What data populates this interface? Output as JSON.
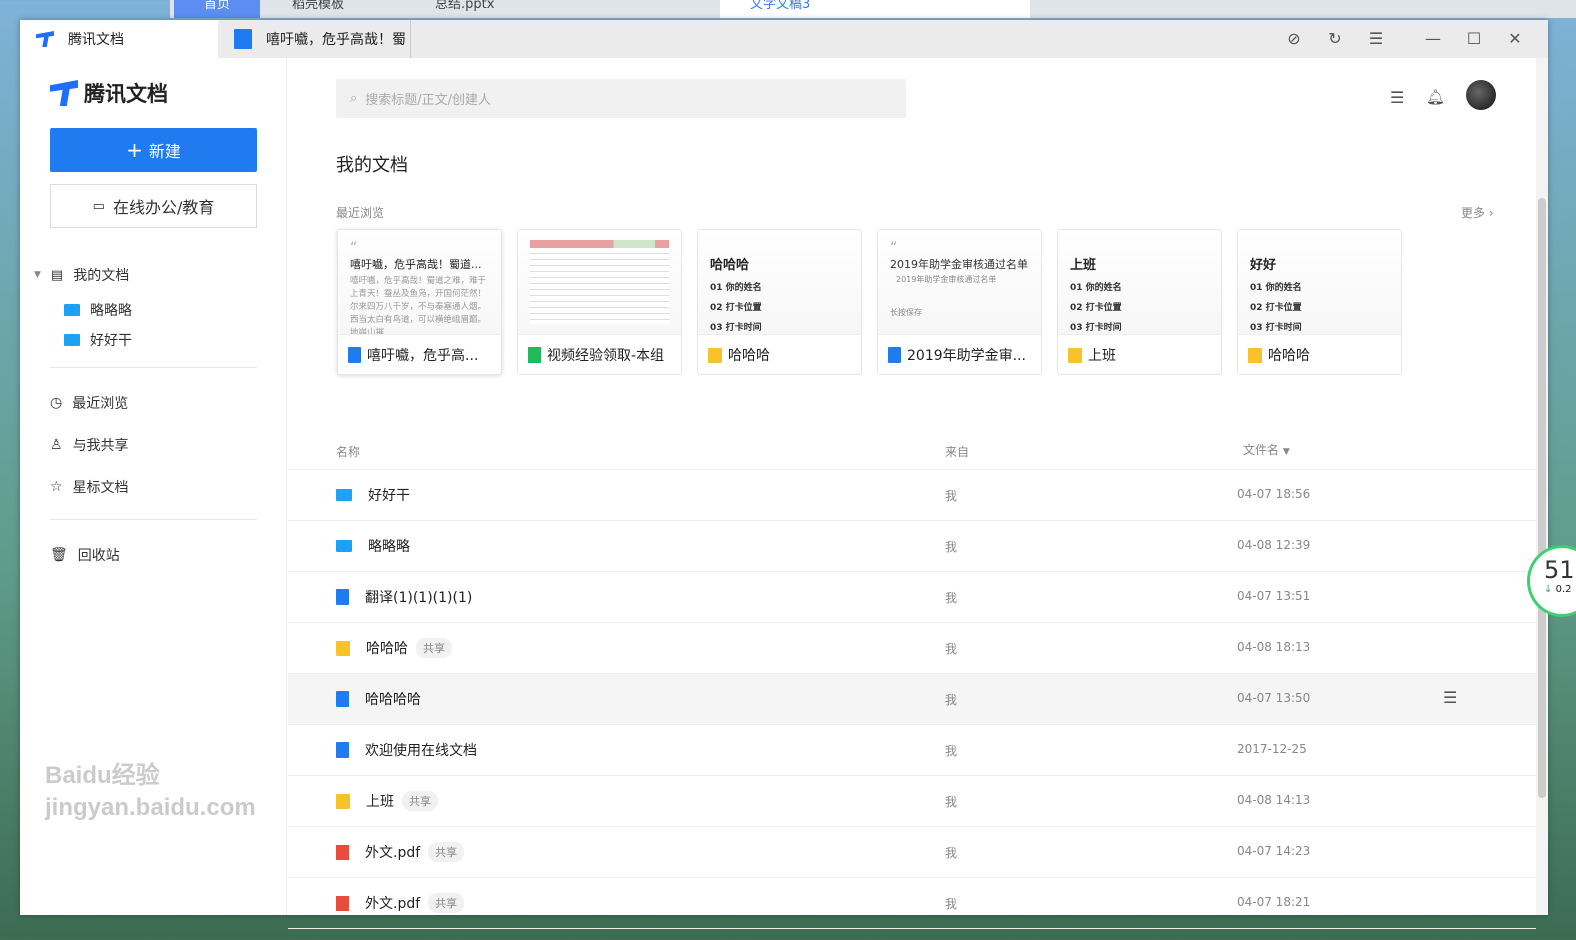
{
  "browser_tabs": [
    "首页",
    "稻壳模板",
    "总结.pptx",
    "文字文稿3"
  ],
  "window": {
    "app_tab": "腾讯文档",
    "doc_tab": "嘻吁嚱，危乎高哉！蜀"
  },
  "sidebar": {
    "logo": "腾讯文档",
    "new_label": "新建",
    "office_label": "在线办公/教育",
    "my_docs": "我的文档",
    "folders": [
      "略略略",
      "好好干"
    ],
    "nav": [
      "最近浏览",
      "与我共享",
      "星标文档"
    ],
    "trash": "回收站"
  },
  "search": {
    "placeholder": "搜索标题/正文/创建人"
  },
  "main": {
    "title": "我的文档",
    "recent_label": "最近浏览",
    "more": "更多"
  },
  "cards": [
    {
      "type": "doc",
      "title": "嘻吁嚱，危乎高...",
      "preview_title": "嘻吁嚱，危乎高哉！蜀道...",
      "preview_body": "嘻吁嚱，危乎高哉！蜀道之难，难于上青天！蚕丛及鱼凫，开国何茫然！尔来四万八千岁，不与秦塞通人烟。西当太白有鸟道，可以横绝峨眉巅。地崩山摧"
    },
    {
      "type": "sheet",
      "title": "视频经验领取-本组"
    },
    {
      "type": "form",
      "title": "哈哈哈",
      "preview_title": "哈哈哈",
      "items": [
        "01  你的姓名",
        "02  打卡位置",
        "03  打卡时间"
      ]
    },
    {
      "type": "doc",
      "title": "2019年助学金审...",
      "preview_title": "2019年助学金审核通过名单",
      "preview_body": "2019年助学金审核通过名单",
      "preview_note": "长按保存"
    },
    {
      "type": "form",
      "title": "上班",
      "preview_title": "上班",
      "items": [
        "01  你的姓名",
        "02  打卡位置",
        "03  打卡时间"
      ]
    },
    {
      "type": "form",
      "title": "哈哈哈",
      "preview_title": "好好",
      "items": [
        "01  你的姓名",
        "02  打卡位置",
        "03  打卡时间"
      ]
    }
  ],
  "table": {
    "headers": {
      "name": "名称",
      "from": "来自",
      "sort": "文件名"
    },
    "rows": [
      {
        "type": "folder",
        "name": "好好干",
        "badge": "",
        "from": "我",
        "date": "04-07 18:56"
      },
      {
        "type": "folder",
        "name": "略略略",
        "badge": "",
        "from": "我",
        "date": "04-08 12:39"
      },
      {
        "type": "doc",
        "name": "翻译(1)(1)(1)(1)",
        "badge": "",
        "from": "我",
        "date": "04-07 13:51"
      },
      {
        "type": "form",
        "name": "哈哈哈",
        "badge": "共享",
        "from": "我",
        "date": "04-08 18:13"
      },
      {
        "type": "doc",
        "name": "哈哈哈哈",
        "badge": "",
        "from": "我",
        "date": "04-07 13:50"
      },
      {
        "type": "doc",
        "name": "欢迎使用在线文档",
        "badge": "",
        "from": "我",
        "date": "2017-12-25"
      },
      {
        "type": "form",
        "name": "上班",
        "badge": "共享",
        "from": "我",
        "date": "04-08 14:13"
      },
      {
        "type": "pdf",
        "name": "外文.pdf",
        "badge": "共享",
        "from": "我",
        "date": "04-07 14:23"
      },
      {
        "type": "pdf",
        "name": "外文.pdf",
        "badge": "共享",
        "from": "我",
        "date": "04-07 18:21"
      }
    ]
  },
  "widget": {
    "value": "51",
    "delta": "0.2"
  },
  "watermark": "Baidu经验 jingyan.baidu.com",
  "colors": {
    "accent": "#1e7cf0",
    "folder": "#1ea0f5",
    "form": "#f9c22b",
    "sheet": "#22b95c",
    "pdf": "#e84b3c"
  }
}
